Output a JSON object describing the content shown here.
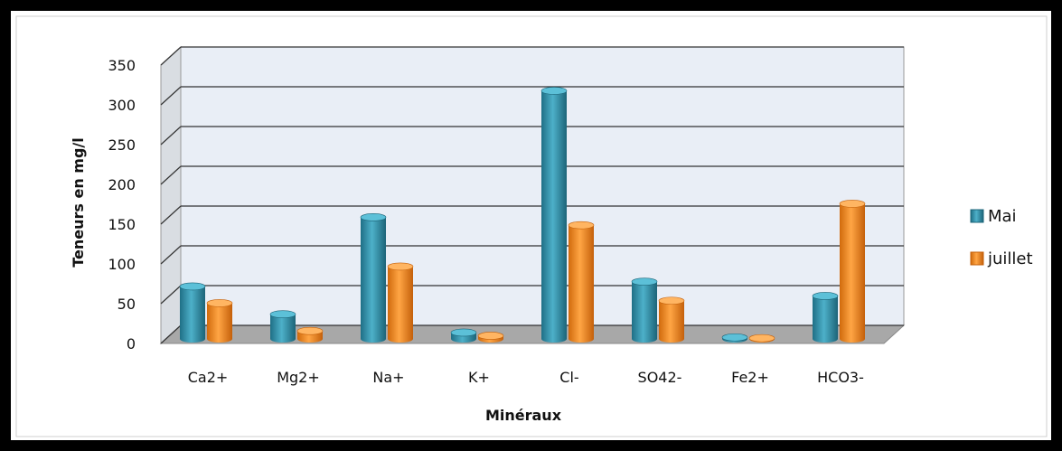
{
  "chart_data": {
    "type": "bar",
    "title": "",
    "xlabel": "Minéraux",
    "ylabel": "Teneurs en mg/l",
    "categories": [
      "Ca2+",
      "Mg2+",
      "Na+",
      "K+",
      "Cl-",
      "SO42-",
      "Fe2+",
      "HCO3-"
    ],
    "y_ticks": [
      "0",
      "50",
      "100",
      "150",
      "200",
      "250",
      "300",
      "350"
    ],
    "ylim": [
      0,
      350
    ],
    "grid": true,
    "legend_position": "right",
    "series": [
      {
        "name": "Mai",
        "color": "#2f8fa8",
        "values": [
          66,
          31,
          153,
          8,
          312,
          72,
          2,
          54
        ]
      },
      {
        "name": "juillet",
        "color": "#f08a1e",
        "values": [
          45,
          10,
          91,
          4,
          143,
          48,
          1,
          170
        ]
      }
    ]
  }
}
